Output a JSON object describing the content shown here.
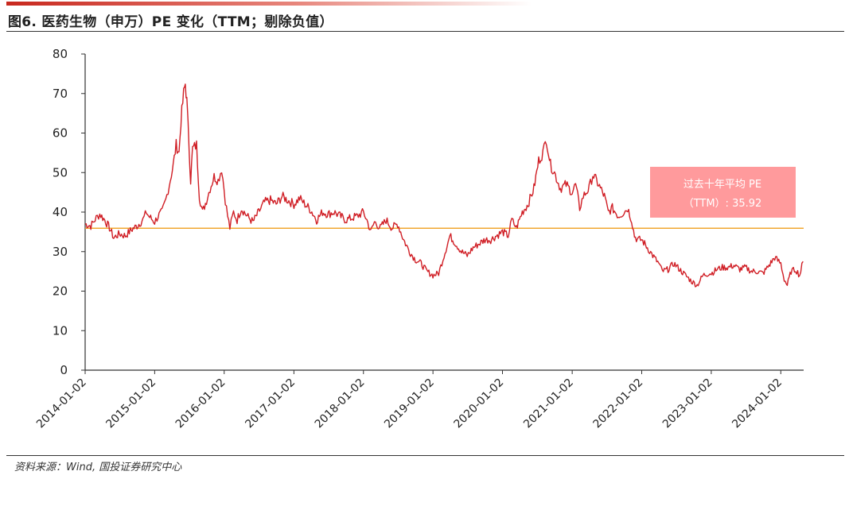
{
  "figure": {
    "title": "图6. 医药生物（申万）PE 变化（TTM；剔除负值）",
    "source": "资料来源：Wind, 国投证券研究中心"
  },
  "colors": {
    "line": "#d01e25",
    "average": "#f0a020",
    "annotation_box": "#ff9a9c",
    "title_bar": "#c8281e"
  },
  "chart_data": {
    "type": "line",
    "title": "图6. 医药生物（申万）PE 变化（TTM；剔除负值）",
    "xlabel": "",
    "ylabel": "",
    "ylim": [
      0,
      80
    ],
    "y_ticks": [
      0,
      10,
      20,
      30,
      40,
      50,
      60,
      70,
      80
    ],
    "x_range": [
      "2014-01-02",
      "2024-05-01"
    ],
    "x_ticks": [
      "2014-01-02",
      "2015-01-02",
      "2016-01-02",
      "2017-01-02",
      "2018-01-02",
      "2019-01-02",
      "2020-01-02",
      "2021-01-02",
      "2022-01-02",
      "2023-01-02",
      "2024-01-02"
    ],
    "grid": false,
    "legend": "none",
    "average_line": {
      "value": 35.92,
      "label_line1": "过去十年平均 PE",
      "label_line2": "（TTM）: 35.92"
    },
    "series": [
      {
        "points": [
          [
            "2014-01-02",
            37
          ],
          [
            "2014-02-01",
            36.5
          ],
          [
            "2014-03-01",
            38.5
          ],
          [
            "2014-03-20",
            39.5
          ],
          [
            "2014-04-15",
            38
          ],
          [
            "2014-05-10",
            36
          ],
          [
            "2014-06-01",
            33.5
          ],
          [
            "2014-07-01",
            34.5
          ],
          [
            "2014-08-01",
            34
          ],
          [
            "2014-09-01",
            35.5
          ],
          [
            "2014-10-01",
            36.5
          ],
          [
            "2014-11-01",
            38
          ],
          [
            "2014-11-20",
            40
          ],
          [
            "2014-12-01",
            39
          ],
          [
            "2015-01-02",
            37.5
          ],
          [
            "2015-01-20",
            39
          ],
          [
            "2015-02-10",
            40
          ],
          [
            "2015-03-01",
            43
          ],
          [
            "2015-03-20",
            47
          ],
          [
            "2015-04-10",
            52
          ],
          [
            "2015-04-25",
            57
          ],
          [
            "2015-05-10",
            55
          ],
          [
            "2015-05-20",
            63
          ],
          [
            "2015-06-03",
            70
          ],
          [
            "2015-06-12",
            72.5
          ],
          [
            "2015-06-20",
            68
          ],
          [
            "2015-07-03",
            55
          ],
          [
            "2015-07-10",
            48
          ],
          [
            "2015-07-20",
            56
          ],
          [
            "2015-08-10",
            57
          ],
          [
            "2015-08-25",
            44
          ],
          [
            "2015-09-10",
            40
          ],
          [
            "2015-10-01",
            43
          ],
          [
            "2015-10-20",
            46
          ],
          [
            "2015-11-10",
            49
          ],
          [
            "2015-12-01",
            48
          ],
          [
            "2015-12-20",
            51
          ],
          [
            "2016-01-08",
            43
          ],
          [
            "2016-01-20",
            39
          ],
          [
            "2016-02-01",
            36
          ],
          [
            "2016-02-20",
            40
          ],
          [
            "2016-03-10",
            38
          ],
          [
            "2016-04-01",
            41
          ],
          [
            "2016-05-01",
            39
          ],
          [
            "2016-06-01",
            37.5
          ],
          [
            "2016-07-01",
            40
          ],
          [
            "2016-08-01",
            42.5
          ],
          [
            "2016-09-01",
            43
          ],
          [
            "2016-10-01",
            42
          ],
          [
            "2016-11-01",
            44
          ],
          [
            "2016-12-01",
            43
          ],
          [
            "2017-01-02",
            42
          ],
          [
            "2017-02-01",
            43.5
          ],
          [
            "2017-03-01",
            42
          ],
          [
            "2017-04-01",
            40.5
          ],
          [
            "2017-05-01",
            38
          ],
          [
            "2017-06-01",
            40
          ],
          [
            "2017-07-01",
            39.5
          ],
          [
            "2017-08-01",
            40
          ],
          [
            "2017-09-01",
            39
          ],
          [
            "2017-10-01",
            38
          ],
          [
            "2017-11-01",
            38.5
          ],
          [
            "2017-12-01",
            39
          ],
          [
            "2018-01-02",
            40
          ],
          [
            "2018-01-20",
            38
          ],
          [
            "2018-02-10",
            35
          ],
          [
            "2018-03-01",
            37.5
          ],
          [
            "2018-04-01",
            36
          ],
          [
            "2018-05-01",
            38
          ],
          [
            "2018-06-01",
            36
          ],
          [
            "2018-07-01",
            37
          ],
          [
            "2018-08-01",
            33
          ],
          [
            "2018-09-01",
            30
          ],
          [
            "2018-10-01",
            28
          ],
          [
            "2018-11-01",
            27
          ],
          [
            "2018-12-01",
            25
          ],
          [
            "2019-01-02",
            24
          ],
          [
            "2019-02-01",
            24.5
          ],
          [
            "2019-03-01",
            29
          ],
          [
            "2019-04-01",
            34
          ],
          [
            "2019-05-01",
            32
          ],
          [
            "2019-06-01",
            30
          ],
          [
            "2019-07-01",
            29
          ],
          [
            "2019-08-01",
            31
          ],
          [
            "2019-09-01",
            32
          ],
          [
            "2019-10-01",
            33
          ],
          [
            "2019-11-01",
            33
          ],
          [
            "2019-12-01",
            34
          ],
          [
            "2020-01-02",
            35
          ],
          [
            "2020-02-01",
            34
          ],
          [
            "2020-02-20",
            38
          ],
          [
            "2020-03-15",
            36
          ],
          [
            "2020-04-15",
            40
          ],
          [
            "2020-05-15",
            42
          ],
          [
            "2020-06-15",
            46
          ],
          [
            "2020-07-10",
            53
          ],
          [
            "2020-08-01",
            55
          ],
          [
            "2020-08-20",
            58.5
          ],
          [
            "2020-09-10",
            52
          ],
          [
            "2020-10-01",
            50
          ],
          [
            "2020-11-01",
            46
          ],
          [
            "2020-12-01",
            47
          ],
          [
            "2021-01-02",
            45
          ],
          [
            "2021-01-20",
            47
          ],
          [
            "2021-02-10",
            41
          ],
          [
            "2021-03-01",
            44
          ],
          [
            "2021-04-01",
            46
          ],
          [
            "2021-04-20",
            49.5
          ],
          [
            "2021-05-20",
            47
          ],
          [
            "2021-06-20",
            44
          ],
          [
            "2021-07-10",
            40
          ],
          [
            "2021-08-01",
            41
          ],
          [
            "2021-09-01",
            39
          ],
          [
            "2021-10-01",
            40
          ],
          [
            "2021-10-20",
            41
          ],
          [
            "2021-11-10",
            38
          ],
          [
            "2021-11-25",
            34
          ],
          [
            "2021-12-10",
            33
          ],
          [
            "2022-01-02",
            33
          ],
          [
            "2022-02-01",
            31
          ],
          [
            "2022-03-01",
            29
          ],
          [
            "2022-04-01",
            27
          ],
          [
            "2022-04-20",
            25
          ],
          [
            "2022-05-20",
            25.5
          ],
          [
            "2022-06-20",
            27
          ],
          [
            "2022-07-20",
            25.5
          ],
          [
            "2022-08-20",
            24
          ],
          [
            "2022-09-20",
            22.5
          ],
          [
            "2022-10-20",
            21.5
          ],
          [
            "2022-11-20",
            24
          ],
          [
            "2022-12-20",
            24.5
          ],
          [
            "2023-01-02",
            24.5
          ],
          [
            "2023-02-01",
            25.5
          ],
          [
            "2023-03-01",
            26
          ],
          [
            "2023-04-01",
            26
          ],
          [
            "2023-05-01",
            26.5
          ],
          [
            "2023-06-01",
            25.5
          ],
          [
            "2023-07-01",
            26
          ],
          [
            "2023-08-01",
            25
          ],
          [
            "2023-09-01",
            25
          ],
          [
            "2023-10-01",
            24.5
          ],
          [
            "2023-11-01",
            26.5
          ],
          [
            "2023-12-01",
            28.5
          ],
          [
            "2024-01-02",
            27
          ],
          [
            "2024-01-20",
            23
          ],
          [
            "2024-02-05",
            21.5
          ],
          [
            "2024-02-25",
            25
          ],
          [
            "2024-03-20",
            25.5
          ],
          [
            "2024-04-10",
            24
          ],
          [
            "2024-04-28",
            27.5
          ]
        ]
      }
    ]
  }
}
